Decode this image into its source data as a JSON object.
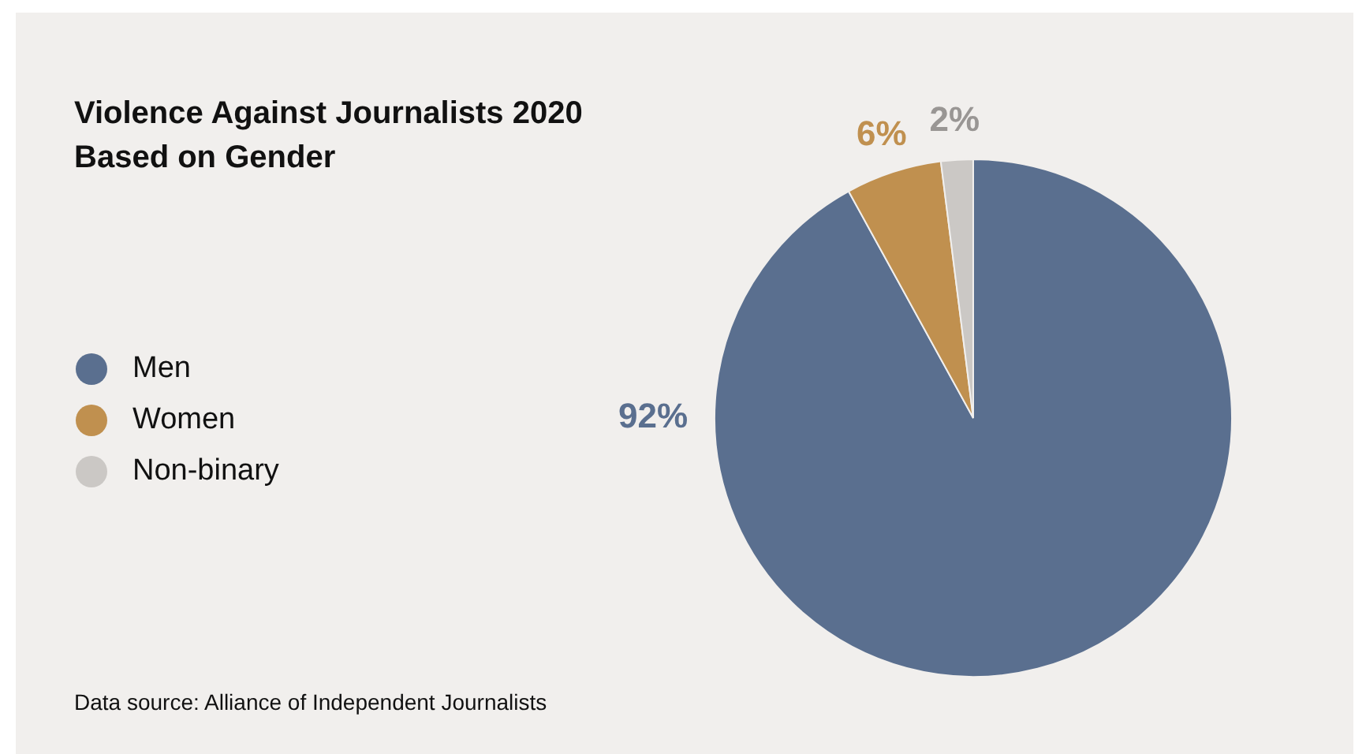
{
  "chart_data": {
    "type": "pie",
    "title": "Violence Against Journalists 2020",
    "subtitle": "Based on Gender",
    "categories": [
      "Men",
      "Women",
      "Non-binary"
    ],
    "values": [
      92,
      6,
      2
    ],
    "colors": [
      "#5a6f8f",
      "#c0904f",
      "#cbc8c5"
    ],
    "value_labels": [
      "92%",
      "6%",
      "2%"
    ],
    "legend": "left",
    "annotations": [
      "Data source: Alliance of Independent Journalists"
    ]
  }
}
